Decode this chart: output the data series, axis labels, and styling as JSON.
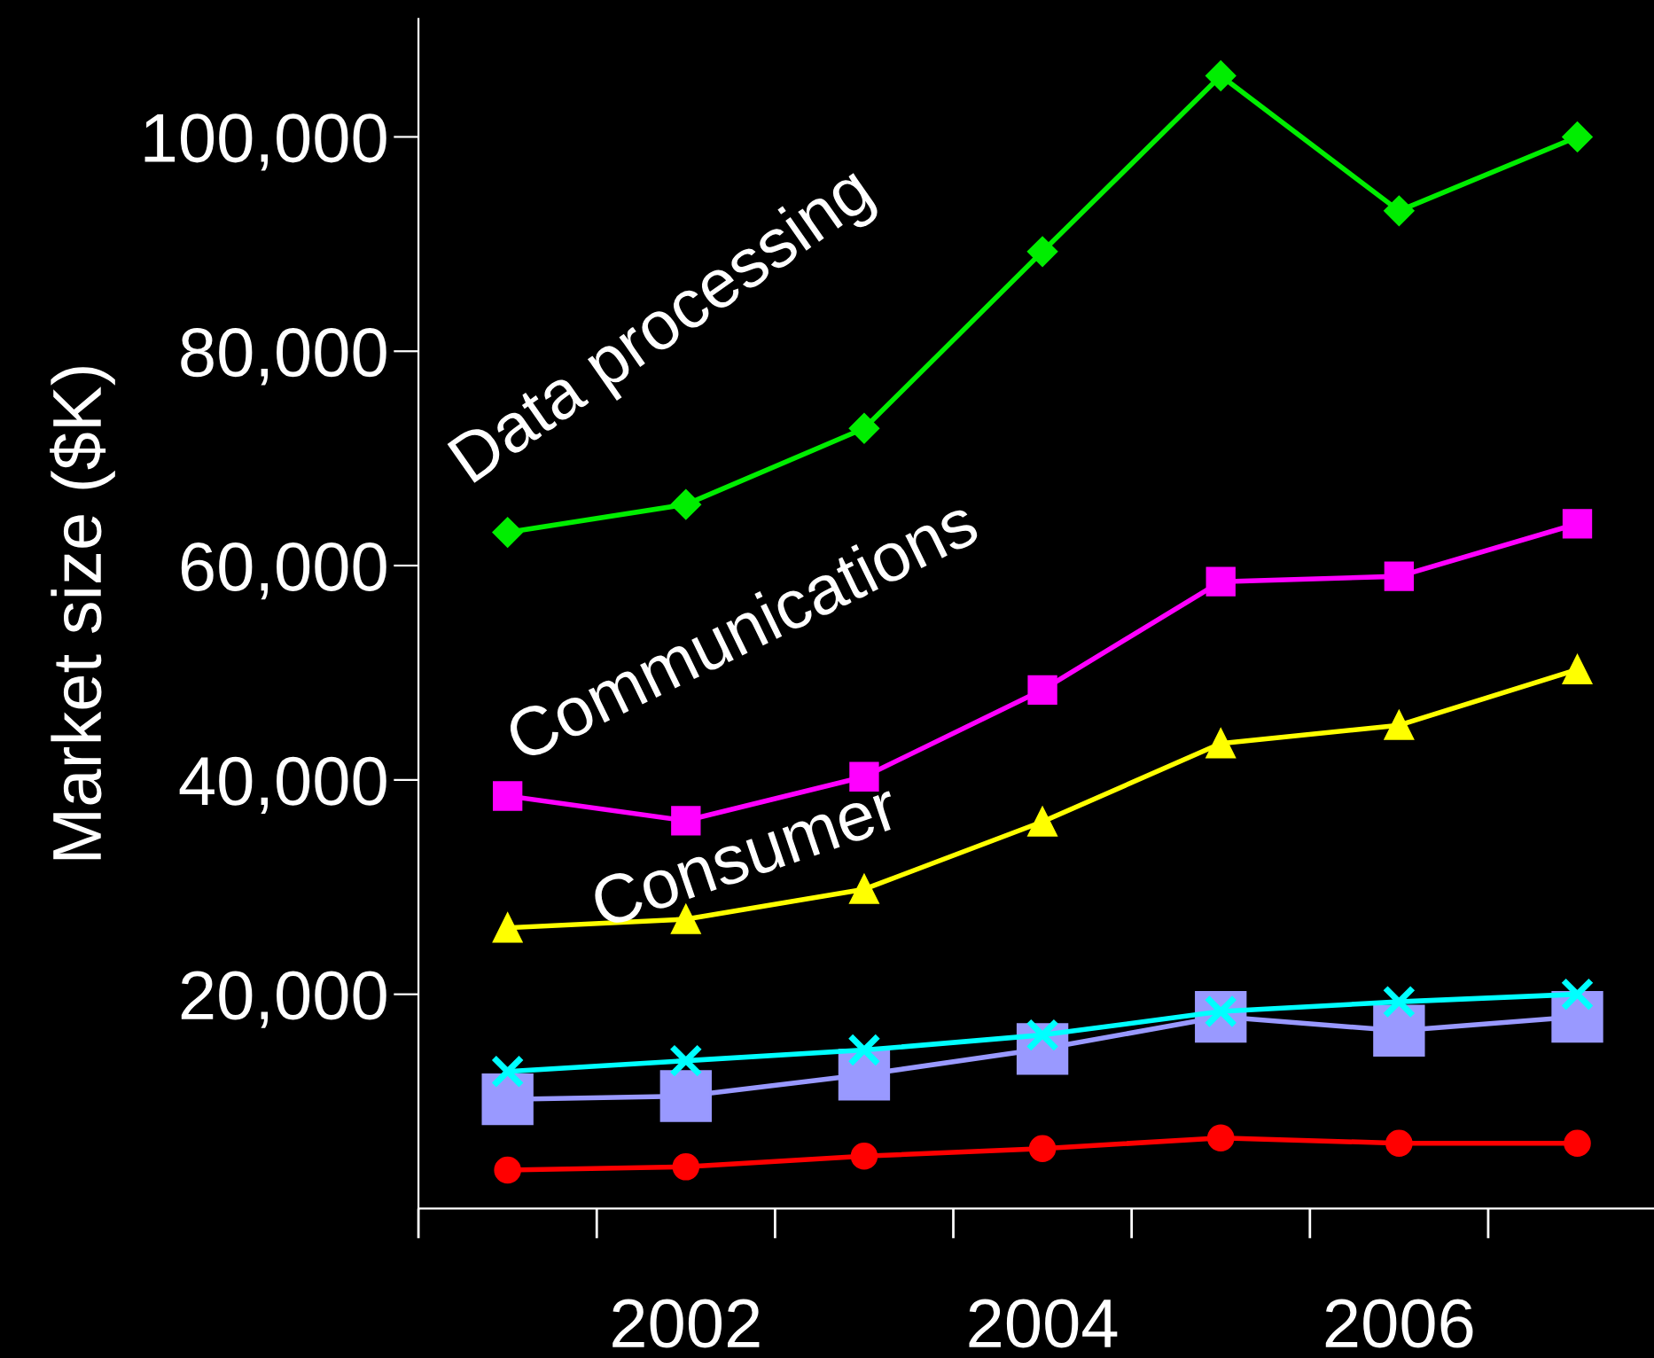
{
  "chart_data": {
    "type": "line",
    "ylabel": "Market size ($K)",
    "categories": [
      null,
      "2002",
      null,
      "2004",
      null,
      "2006",
      null
    ],
    "ylim": [
      0,
      111000
    ],
    "yticks": [
      {
        "value": 20000,
        "label": "20,000"
      },
      {
        "value": 40000,
        "label": "40,000"
      },
      {
        "value": 60000,
        "label": "60,000"
      },
      {
        "value": 80000,
        "label": "80,000"
      },
      {
        "value": 100000,
        "label": "100,000"
      }
    ],
    "grid": false,
    "legend": false,
    "series": [
      {
        "name": "Data processing",
        "color": "#00ee00",
        "marker": "diamond",
        "values": [
          63100,
          65700,
          72800,
          89300,
          105700,
          93100,
          100000
        ]
      },
      {
        "name": "Communications",
        "color": "#ff00ff",
        "marker": "square",
        "values": [
          38500,
          36200,
          40300,
          48400,
          58500,
          59000,
          63900
        ]
      },
      {
        "name": "Consumer",
        "color": "#ffff00",
        "marker": "triangle",
        "values": [
          26200,
          27000,
          29800,
          36100,
          43400,
          45100,
          50300
        ]
      },
      {
        "color": "#00ffff",
        "marker": "cross",
        "values": [
          12800,
          13800,
          14800,
          16200,
          18400,
          19300,
          20000
        ]
      },
      {
        "color": "#9999ff",
        "marker": "square",
        "values": [
          10200,
          10500,
          12500,
          14900,
          17900,
          16600,
          17900
        ]
      },
      {
        "color": "#ff0000",
        "marker": "circle",
        "values": [
          3600,
          3900,
          4900,
          5600,
          6600,
          6100,
          6100
        ]
      }
    ]
  }
}
